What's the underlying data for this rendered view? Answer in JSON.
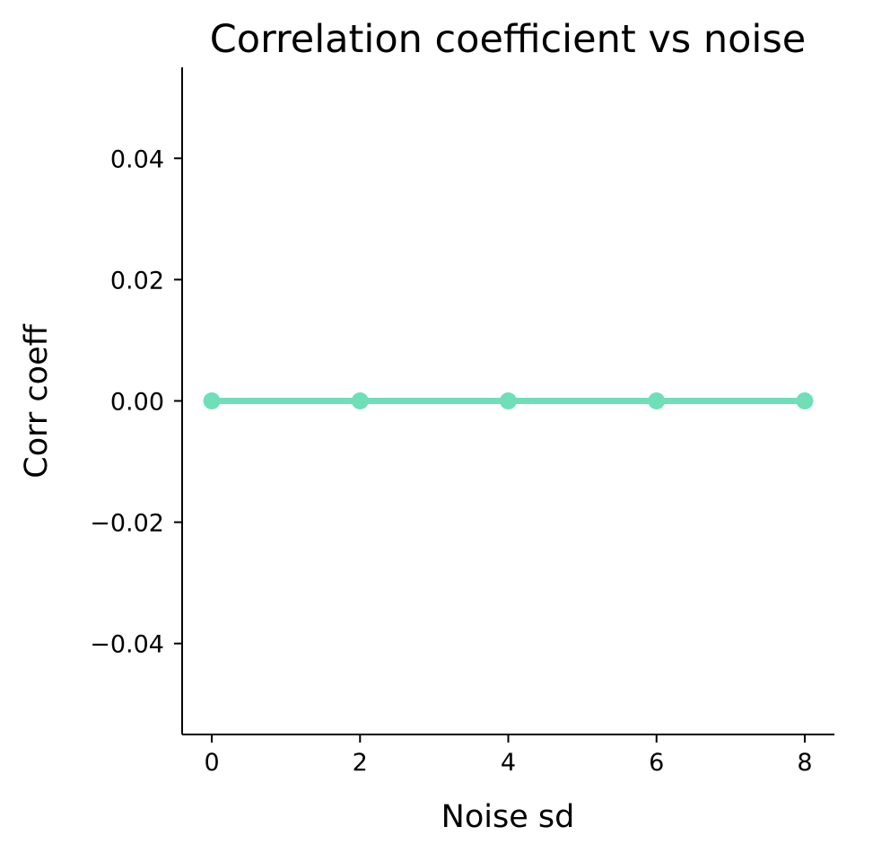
{
  "chart_data": {
    "type": "line",
    "title": "Correlation coefficient vs noise",
    "xlabel": "Noise sd",
    "ylabel": "Corr coeff",
    "x": [
      0,
      2,
      4,
      6,
      8
    ],
    "series": [
      {
        "values": [
          0,
          0,
          0,
          0,
          0
        ],
        "color": "#6fdfb8"
      }
    ],
    "xlim": [
      -0.4,
      8.4
    ],
    "ylim": [
      -0.055,
      0.055
    ],
    "xticks": [
      0,
      2,
      4,
      6,
      8
    ],
    "xtick_labels": [
      "0",
      "2",
      "4",
      "6",
      "8"
    ],
    "yticks": [
      0.04,
      0.02,
      0.0,
      -0.02,
      -0.04
    ],
    "ytick_labels": [
      "0.04",
      "0.02",
      "0.00",
      "−0.02",
      "−0.04"
    ],
    "grid": false,
    "legend": "none"
  }
}
